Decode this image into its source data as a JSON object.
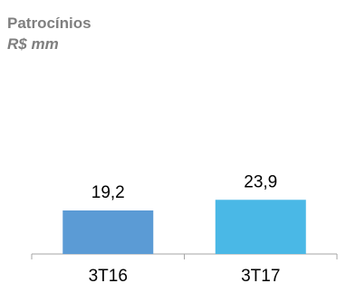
{
  "header": {
    "title": "Patrocínios",
    "subtitle": "R$ mm"
  },
  "chart_data": {
    "type": "bar",
    "title": "Patrocínios",
    "subtitle": "R$ mm",
    "categories": [
      "3T16",
      "3T17"
    ],
    "values": [
      19.2,
      23.9
    ],
    "data_labels": [
      "19,2",
      "23,9"
    ],
    "colors": [
      "#5b9bd5",
      "#4ab8e6"
    ],
    "xlabel": "",
    "ylabel": "",
    "grid": false,
    "legend": "none"
  }
}
